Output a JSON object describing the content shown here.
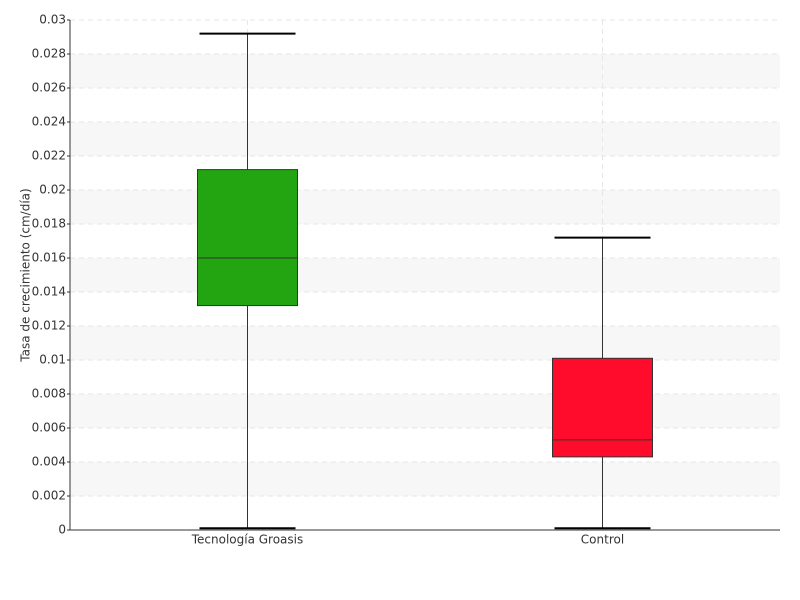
{
  "chart_data": {
    "type": "box",
    "y_label": "Tasa de crecimiento (cm/día)",
    "categories": [
      "Tecnología Groasis",
      "Control"
    ],
    "colors": [
      "#22a511",
      "#ff0c2c"
    ],
    "min": [
      0.0001,
      0.0001
    ],
    "q1": [
      0.0132,
      0.0043
    ],
    "median": [
      0.016,
      0.0053
    ],
    "q3": [
      0.0212,
      0.0101
    ],
    "max": [
      0.0292,
      0.0172
    ],
    "ylim": [
      0,
      0.03
    ],
    "yticks": [
      0,
      0.002,
      0.004,
      0.006,
      0.008,
      0.01,
      0.012,
      0.014,
      0.016,
      0.018,
      0.02,
      0.022,
      0.024,
      0.026,
      0.028,
      0.03
    ],
    "grid": true
  }
}
